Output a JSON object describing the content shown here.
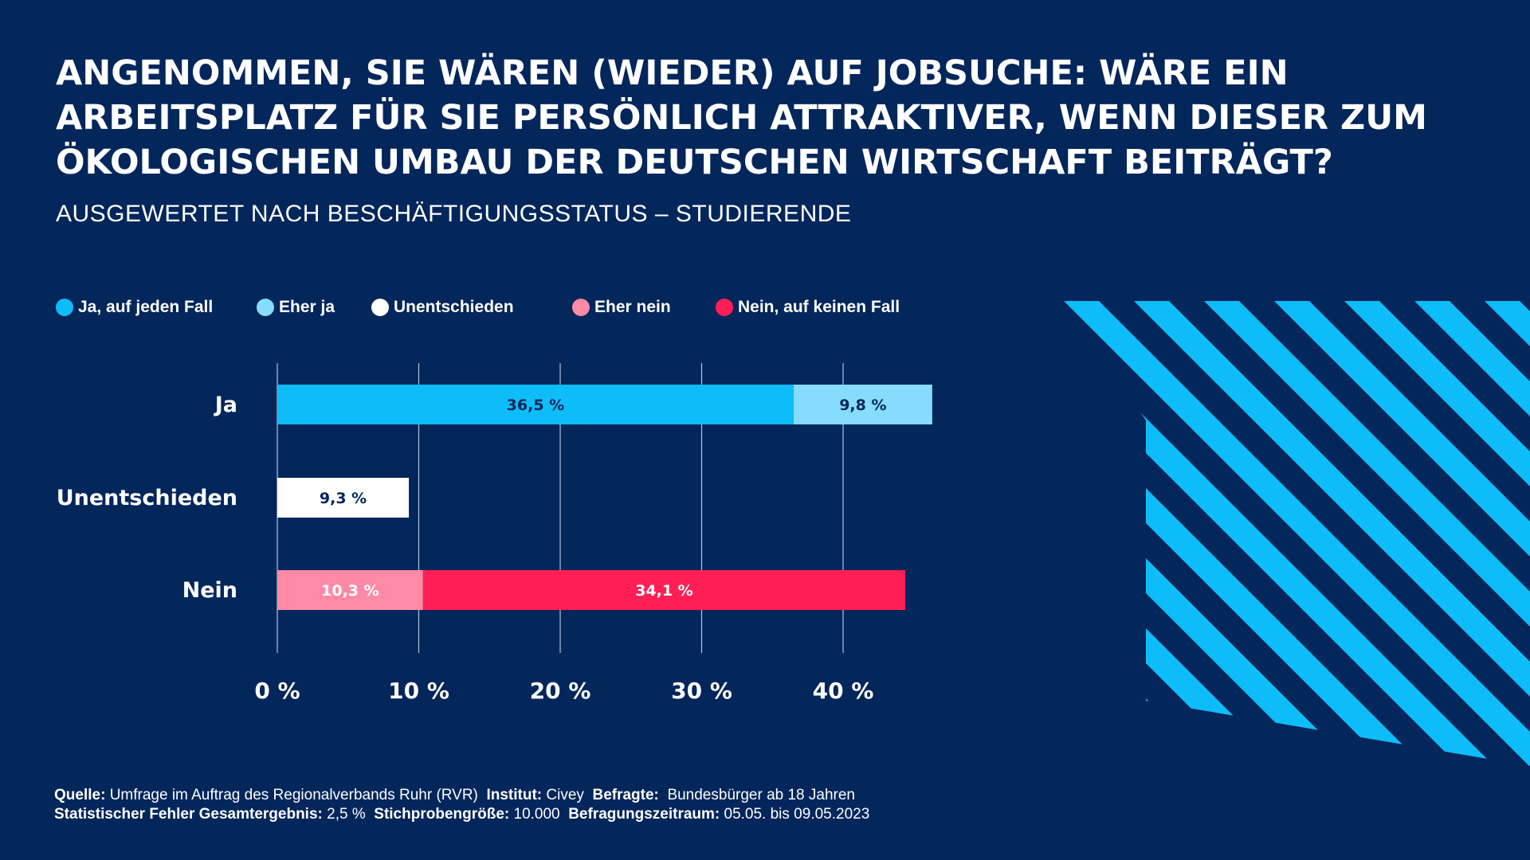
{
  "title_lines": [
    "ANGENOMMEN, SIE WÄREN (WIEDER) AUF JOBSUCHE: WÄRE EIN",
    "ARBEITSPLATZ FÜR SIE PERSÖNLICH ATTRAKTIVER, WENN DIESER ZUM",
    "ÖKOLOGISCHEN UMBAU DER DEUTSCHEN WIRTSCHAFT BEITRÄGT?"
  ],
  "subtitle": "AUSGEWERTET NACH BESCHÄFTIGUNGSSTATUS – STUDIERENDE",
  "colors": {
    "background": "#03265b",
    "ja_auf_jeden_fall": "#0ebcf7",
    "eher_ja": "#86dcff",
    "unentschieden": "#ffffff",
    "eher_nein": "#ff8aa6",
    "nein_auf_keinen_fall": "#ff1f55",
    "label_dark": "#03265b",
    "stripes": "#0ebcf7"
  },
  "legend": [
    {
      "label": "Ja, auf jeden Fall",
      "color": "#0ebcf7"
    },
    {
      "label": "Eher ja",
      "color": "#86dcff"
    },
    {
      "label": "Unentschieden",
      "color": "#ffffff"
    },
    {
      "label": "Eher nein",
      "color": "#ff8aa6"
    },
    {
      "label": "Nein, auf keinen Fall",
      "color": "#ff1f55"
    }
  ],
  "chart_data": {
    "type": "bar",
    "orientation": "horizontal",
    "stacked": true,
    "title": "ANGENOMMEN, SIE WÄREN (WIEDER) AUF JOBSUCHE: WÄRE EIN ARBEITSPLATZ FÜR SIE PERSÖNLICH ATTRAKTIVER, WENN DIESER ZUM ÖKOLOGISCHEN UMBAU DER DEUTSCHEN WIRTSCHAFT BEITRÄGT?",
    "subtitle": "AUSGEWERTET NACH BESCHÄFTIGUNGSSTATUS – STUDIERENDE",
    "categories": [
      "Ja",
      "Unentschieden",
      "Nein"
    ],
    "xlim": [
      0,
      40
    ],
    "x_ticks": [
      "0 %",
      "10 %",
      "20 %",
      "30 %",
      "40 %"
    ],
    "x_tick_values": [
      0,
      10,
      20,
      30,
      40
    ],
    "grid": true,
    "legend_position": "top-left",
    "bars": [
      {
        "category": "Ja",
        "segments": [
          {
            "series": "Ja, auf jeden Fall",
            "value": 36.5,
            "label": "36,5 %",
            "color": "#0ebcf7"
          },
          {
            "series": "Eher ja",
            "value": 9.8,
            "label": "9,8 %",
            "color": "#86dcff"
          }
        ]
      },
      {
        "category": "Unentschieden",
        "segments": [
          {
            "series": "Unentschieden",
            "value": 9.3,
            "label": "9,3 %",
            "color": "#ffffff"
          }
        ]
      },
      {
        "category": "Nein",
        "segments": [
          {
            "series": "Eher nein",
            "value": 10.3,
            "label": "10,3 %",
            "color": "#ff8aa6"
          },
          {
            "series": "Nein, auf keinen Fall",
            "value": 34.1,
            "label": "34,1 %",
            "color": "#ff1f55"
          }
        ]
      }
    ]
  },
  "source": {
    "line1": [
      {
        "key": "Quelle:",
        "value": "Umfrage im Auftrag des Regionalverbands Ruhr (RVR)"
      },
      {
        "key": "Institut:",
        "value": "Civey"
      },
      {
        "key": "Befragte:",
        "value": "Bundesbürger ab 18 Jahren"
      }
    ],
    "line2": [
      {
        "key": "Statistischer Fehler Gesamtergebnis:",
        "value": "2,5 %"
      },
      {
        "key": "Stichprobengröße:",
        "value": "10.000"
      },
      {
        "key": "Befragungszeitraum:",
        "value": "05.05. bis 09.05.2023"
      }
    ]
  }
}
